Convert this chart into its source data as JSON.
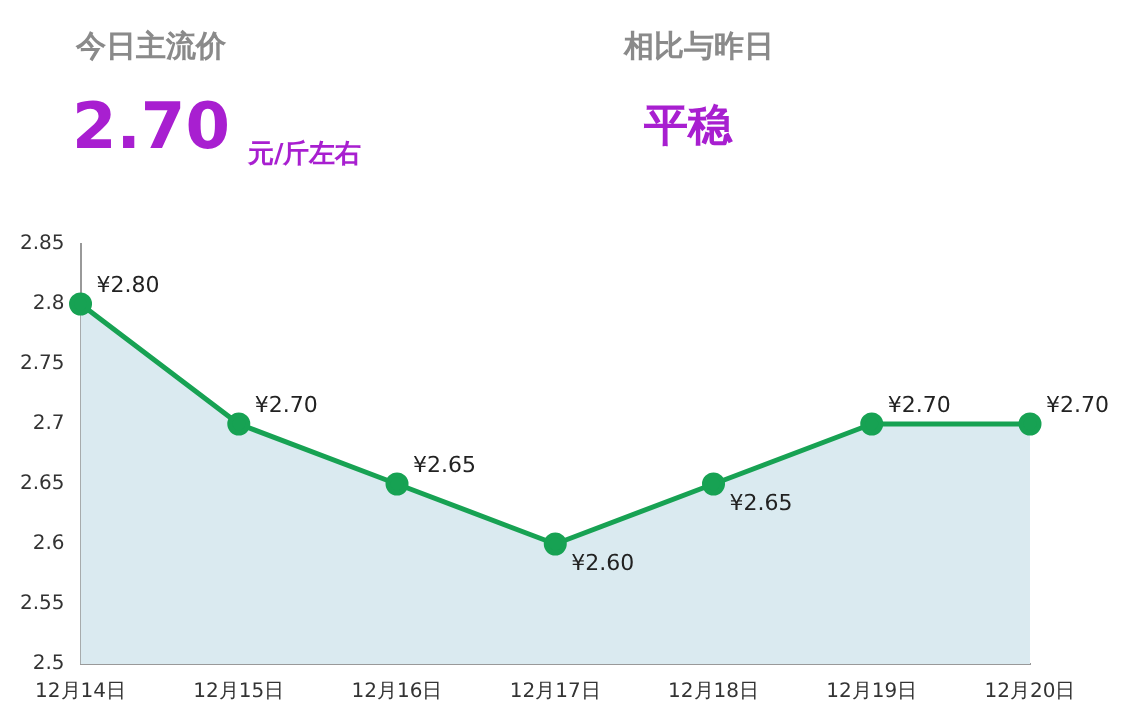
{
  "chart_data": {
    "type": "area",
    "annotations": [
      "今日主流价",
      "2.70",
      "元/斤左右",
      "相比与昨日",
      "平稳"
    ],
    "categories": [
      "12月14日",
      "12月15日",
      "12月16日",
      "12月17日",
      "12月18日",
      "12月19日",
      "12月20日"
    ],
    "series": [
      {
        "color": "#17a253",
        "values": [
          2.8,
          2.7,
          2.65,
          2.6,
          2.65,
          2.7,
          2.7
        ],
        "value_labels": [
          "¥2.80",
          "¥2.70",
          "¥2.65",
          "¥2.60",
          "¥2.65",
          "¥2.70",
          "¥2.70"
        ]
      }
    ],
    "ylim": [
      2.5,
      2.85
    ],
    "yticks": [
      2.5,
      2.55,
      2.6,
      2.65,
      2.7,
      2.75,
      2.8,
      2.85
    ],
    "grid": false,
    "legend": false,
    "marker": "circle",
    "line_style": "solid"
  }
}
